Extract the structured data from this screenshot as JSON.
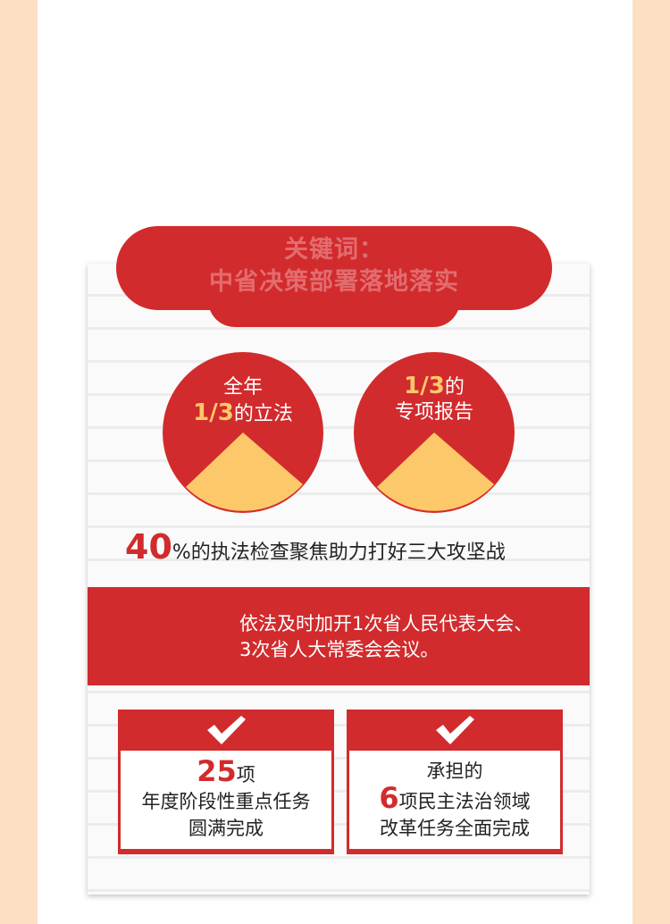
{
  "header": {
    "line1": "关键词：",
    "line2": "中省决策部署落地落实"
  },
  "pies": [
    {
      "line1_pre": "全年",
      "fraction": "1/3",
      "line2_suffix": "的立法",
      "share": 0.3333
    },
    {
      "fraction": "1/3",
      "line1_suffix": "的",
      "line2": "专项报告",
      "share": 0.3333
    }
  ],
  "enforcement": {
    "number": "40",
    "text": "%的执法检查聚焦助力打好三大攻坚战"
  },
  "band": {
    "line1": "依法及时加开1次省人民代表大会、",
    "line2": "3次省人大常委会会议。"
  },
  "boxes": [
    {
      "icon": "check-icon",
      "number": "25",
      "suffix": "项",
      "line2": "年度阶段性重点任务",
      "line3": "圆满完成"
    },
    {
      "icon": "check-icon",
      "line1": "承担的",
      "number": "6",
      "suffix": "项民主法治领域",
      "line3": "改革任务全面完成"
    }
  ],
  "colors": {
    "red": "#d22b2d",
    "yellow": "#fcc86a",
    "peach": "#fde0c4"
  }
}
